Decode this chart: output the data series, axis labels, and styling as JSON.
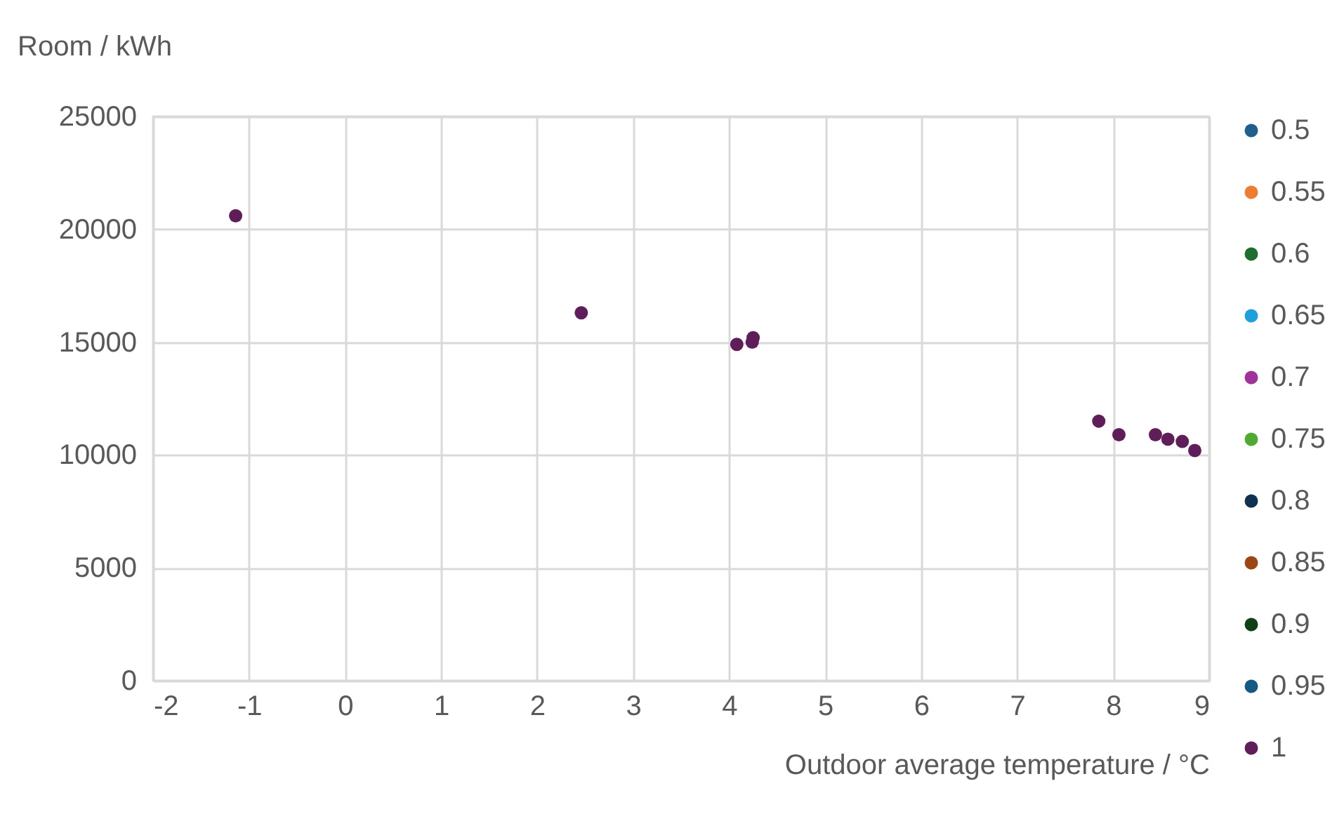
{
  "chart_data": {
    "type": "scatter",
    "xlabel": "Outdoor average temperature / °C",
    "ylabel": "Room / kWh",
    "x": [
      -1.14,
      2.46,
      4.08,
      4.24,
      4.25,
      7.85,
      8.06,
      8.44,
      8.57,
      8.72,
      8.85
    ],
    "series": [
      {
        "name": "0.5",
        "color": "#1f5f8b",
        "values": [
          null,
          null,
          null,
          null,
          null,
          null,
          null,
          null,
          null,
          null,
          null
        ]
      },
      {
        "name": "0.55",
        "color": "#ed7d31",
        "values": [
          null,
          null,
          null,
          null,
          null,
          null,
          null,
          null,
          null,
          null,
          null
        ]
      },
      {
        "name": "0.6",
        "color": "#1e6e2e",
        "values": [
          null,
          null,
          null,
          null,
          null,
          null,
          null,
          null,
          null,
          null,
          null
        ]
      },
      {
        "name": "0.65",
        "color": "#1ea0dc",
        "values": [
          null,
          null,
          null,
          null,
          null,
          null,
          null,
          null,
          null,
          null,
          null
        ]
      },
      {
        "name": "0.7",
        "color": "#a0329b",
        "values": [
          null,
          null,
          null,
          null,
          null,
          null,
          null,
          null,
          null,
          null,
          null
        ]
      },
      {
        "name": "0.75",
        "color": "#50aa32",
        "values": [
          null,
          null,
          null,
          null,
          null,
          null,
          null,
          null,
          null,
          null,
          null
        ]
      },
      {
        "name": "0.8",
        "color": "#0f3250",
        "values": [
          null,
          null,
          null,
          null,
          null,
          null,
          null,
          null,
          null,
          null,
          null
        ]
      },
      {
        "name": "0.85",
        "color": "#9b4614",
        "values": [
          null,
          null,
          null,
          null,
          null,
          null,
          null,
          null,
          null,
          null,
          null
        ]
      },
      {
        "name": "0.9",
        "color": "#0f4119",
        "values": [
          null,
          null,
          null,
          null,
          null,
          null,
          null,
          null,
          null,
          null,
          null
        ]
      },
      {
        "name": "0.95",
        "color": "#145a82",
        "values": [
          null,
          null,
          null,
          null,
          null,
          null,
          null,
          null,
          null,
          null,
          null
        ]
      },
      {
        "name": "1",
        "color": "#5f1e5a",
        "values": [
          20600,
          16300,
          14900,
          15000,
          15200,
          11500,
          10900,
          10900,
          10700,
          10600,
          10200
        ]
      }
    ],
    "xlim": [
      -2,
      9
    ],
    "xticks": [
      -2,
      -1,
      0,
      1,
      2,
      3,
      4,
      5,
      6,
      7,
      8,
      9
    ],
    "ylim": [
      0,
      25000
    ],
    "yticks": [
      0,
      5000,
      10000,
      15000,
      20000,
      25000
    ],
    "grid": true,
    "legend": "right",
    "marker": "circle"
  }
}
